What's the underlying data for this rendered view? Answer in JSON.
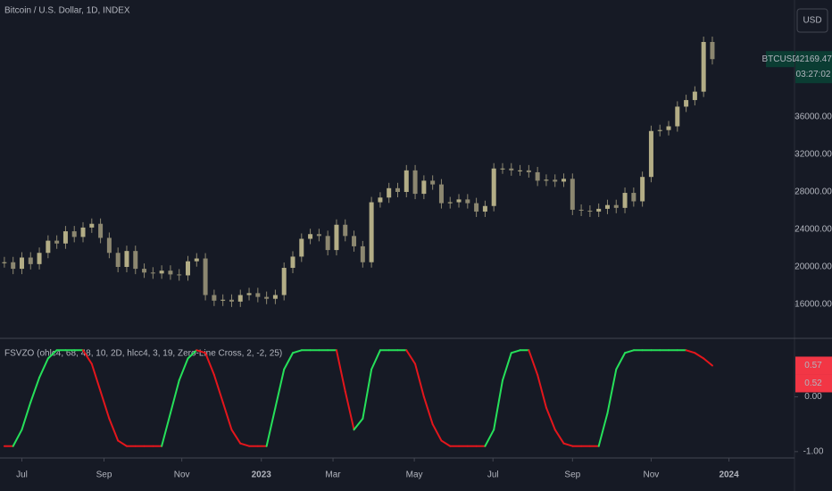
{
  "chart_data": [
    {
      "type": "candle",
      "title": "Bitcoin / U.S. Dollar, 1D, INDEX",
      "currency": "USD",
      "symbol_badge": "BTCUSD",
      "last_value_label": "42169.47",
      "countdown": "03:27:02",
      "up_color": "#b3ad86",
      "down_color": "#8c8770",
      "values": [
        20500,
        19800,
        21000,
        20300,
        21500,
        22800,
        22500,
        23800,
        23200,
        24200,
        24600,
        23100,
        21500,
        20000,
        21700,
        19800,
        19400,
        19300,
        19600,
        19200,
        19100,
        20600,
        20900,
        17000,
        16400,
        16500,
        16300,
        17000,
        17200,
        16800,
        16600,
        17000,
        19900,
        21100,
        23000,
        23500,
        23300,
        21800,
        24500,
        23300,
        22200,
        20500,
        26900,
        27400,
        28400,
        28000,
        30300,
        27800,
        29200,
        28800,
        26800,
        26900,
        27200,
        26800,
        25900,
        26500,
        30500,
        30500,
        30300,
        30300,
        30100,
        29200,
        29300,
        29100,
        29400,
        26100,
        26000,
        25900,
        26200,
        26600,
        26300,
        27900,
        27000,
        29600,
        34500,
        34600,
        35000,
        37100,
        37800,
        38700,
        44000,
        42169.47
      ],
      "ylim": [
        12476,
        48476
      ],
      "yticks": [
        {
          "value": 16000,
          "label": "16000.00"
        },
        {
          "value": 20000,
          "label": "20000.00"
        },
        {
          "value": 24000,
          "label": "24000.00"
        },
        {
          "value": 28000,
          "label": "28000.00"
        },
        {
          "value": 32000,
          "label": "32000.00"
        },
        {
          "value": 36000,
          "label": "36000.00"
        }
      ]
    },
    {
      "type": "line",
      "title": "FSVZO (ohlc4, 68, 48, 10, 2D, hlcc4, 3, 19, Zero-Line Cross, 2, -2, 25)",
      "up_color": "#26e05a",
      "down_color": "#e3161c",
      "values": [
        -0.9,
        -0.9,
        -0.6,
        -0.1,
        0.35,
        0.7,
        0.85,
        0.85,
        0.85,
        0.85,
        0.6,
        0.1,
        -0.4,
        -0.8,
        -0.9,
        -0.9,
        -0.9,
        -0.9,
        -0.9,
        -0.3,
        0.3,
        0.7,
        0.85,
        0.8,
        0.4,
        -0.1,
        -0.6,
        -0.85,
        -0.9,
        -0.9,
        -0.9,
        -0.2,
        0.5,
        0.8,
        0.85,
        0.85,
        0.85,
        0.85,
        0.85,
        0.1,
        -0.6,
        -0.4,
        0.5,
        0.85,
        0.85,
        0.85,
        0.85,
        0.6,
        0.0,
        -0.5,
        -0.8,
        -0.9,
        -0.9,
        -0.9,
        -0.9,
        -0.9,
        -0.6,
        0.3,
        0.8,
        0.85,
        0.85,
        0.4,
        -0.2,
        -0.6,
        -0.85,
        -0.9,
        -0.9,
        -0.9,
        -0.9,
        -0.3,
        0.5,
        0.8,
        0.85,
        0.85,
        0.85,
        0.85,
        0.85,
        0.85,
        0.85,
        0.8,
        0.7,
        0.57
      ],
      "badges": [
        {
          "value": 0.57,
          "label": "0.57"
        },
        {
          "value": 0.52,
          "label": "0.52"
        }
      ],
      "ylim": [
        -1.1,
        1.05
      ],
      "yticks": [
        {
          "value": 0,
          "label": "0.00"
        },
        {
          "value": -1,
          "label": "-1.00"
        }
      ],
      "xlim": [
        -0.5,
        90.4
      ],
      "xticks": [
        {
          "value": 2.0,
          "label": "Jul"
        },
        {
          "value": 11.4,
          "label": "Sep"
        },
        {
          "value": 20.3,
          "label": "Nov"
        },
        {
          "value": 29.4,
          "label": "2023"
        },
        {
          "value": 37.6,
          "label": "Mar"
        },
        {
          "value": 46.9,
          "label": "May"
        },
        {
          "value": 55.9,
          "label": "Jul"
        },
        {
          "value": 65.0,
          "label": "Sep"
        },
        {
          "value": 74.0,
          "label": "Nov"
        },
        {
          "value": 82.9,
          "label": "2024"
        }
      ]
    }
  ]
}
